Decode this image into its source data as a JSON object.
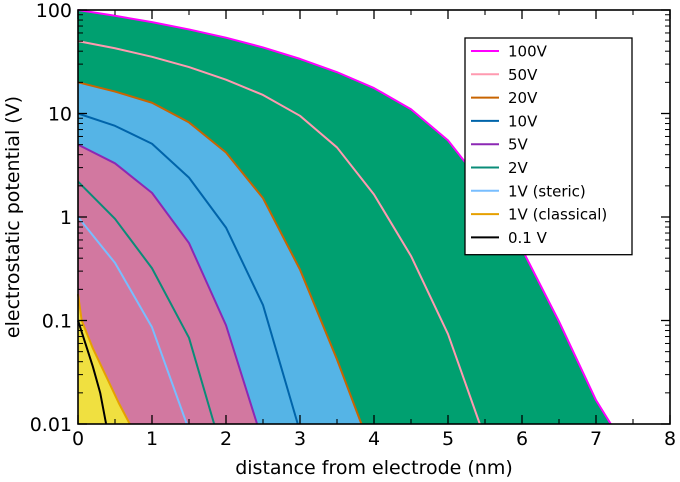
{
  "chart_data": {
    "type": "area",
    "title": "",
    "xlabel": "distance from electrode (nm)",
    "ylabel": "electrostatic potential (V)",
    "xlim": [
      0,
      8
    ],
    "ylim": [
      0.01,
      100
    ],
    "yscale": "log",
    "xticks": [
      0,
      1,
      2,
      3,
      4,
      5,
      6,
      7,
      8
    ],
    "xtick_labels": [
      "0",
      "1",
      "2",
      "3",
      "4",
      "5",
      "6",
      "7",
      "8"
    ],
    "yticks": [
      0.01,
      0.1,
      1,
      10,
      100
    ],
    "ytick_labels": [
      "0.01",
      "0.1",
      "1",
      "10",
      "100"
    ],
    "grid": false,
    "legend": "top-right",
    "series": [
      {
        "name": "100V",
        "color": "#ff00ff",
        "fill": "#00a070",
        "x": [
          0,
          0.5,
          1,
          1.5,
          2,
          2.5,
          3,
          3.5,
          4,
          4.5,
          5,
          5.5,
          6,
          6.5,
          7,
          7.2
        ],
        "y": [
          100,
          87.9,
          76.3,
          64.9,
          54,
          43.5,
          33.7,
          25.1,
          17.6,
          11,
          5.5,
          1.93,
          0.49,
          0.098,
          0.017,
          0.01
        ]
      },
      {
        "name": "50V",
        "color": "#ff9ab0",
        "fill": "",
        "x": [
          0,
          0.5,
          1,
          1.5,
          2,
          2.5,
          3,
          3.5,
          4,
          4.5,
          5,
          5.43
        ],
        "y": [
          50,
          42.7,
          35.3,
          28.1,
          21.2,
          15.1,
          9.5,
          4.7,
          1.65,
          0.42,
          0.074,
          0.01
        ]
      },
      {
        "name": "20V",
        "color": "#c86400",
        "fill": "#55b4e6",
        "x": [
          0,
          0.5,
          1,
          1.5,
          2,
          2.5,
          3,
          3.5,
          3.83
        ],
        "y": [
          20,
          16.3,
          12.7,
          8.2,
          4.2,
          1.52,
          0.31,
          0.042,
          0.01
        ]
      },
      {
        "name": "10V",
        "color": "#0064aa",
        "fill": "",
        "x": [
          0,
          0.5,
          1,
          1.5,
          2,
          2.5,
          2.97
        ],
        "y": [
          10,
          7.6,
          5.1,
          2.4,
          0.79,
          0.141,
          0.01
        ]
      },
      {
        "name": "5V",
        "color": "#8c28b4",
        "fill": "#d278a0",
        "x": [
          0,
          0.5,
          1,
          1.5,
          2,
          2.42
        ],
        "y": [
          5,
          3.3,
          1.71,
          0.56,
          0.09,
          0.01
        ]
      },
      {
        "name": "2V",
        "color": "#0a8c78",
        "fill": "",
        "x": [
          0,
          0.5,
          1,
          1.5,
          1.84
        ],
        "y": [
          2.2,
          0.96,
          0.32,
          0.068,
          0.01
        ]
      },
      {
        "name": "1V (steric)",
        "color": "#78beff",
        "fill": "",
        "x": [
          0,
          0.5,
          1,
          1.47
        ],
        "y": [
          1,
          0.36,
          0.086,
          0.01
        ]
      },
      {
        "name": "1V (classical)",
        "color": "#e6a000",
        "fill": "#f0e040",
        "x": [
          0,
          0.05,
          0.2,
          0.4,
          0.55,
          0.7
        ],
        "y": [
          0.18,
          0.1,
          0.054,
          0.027,
          0.016,
          0.01
        ]
      },
      {
        "name": "0.1 V",
        "color": "#000000",
        "fill": "",
        "x": [
          0,
          0.1,
          0.2,
          0.3,
          0.38
        ],
        "y": [
          0.1,
          0.06,
          0.036,
          0.02,
          0.01
        ]
      }
    ]
  }
}
